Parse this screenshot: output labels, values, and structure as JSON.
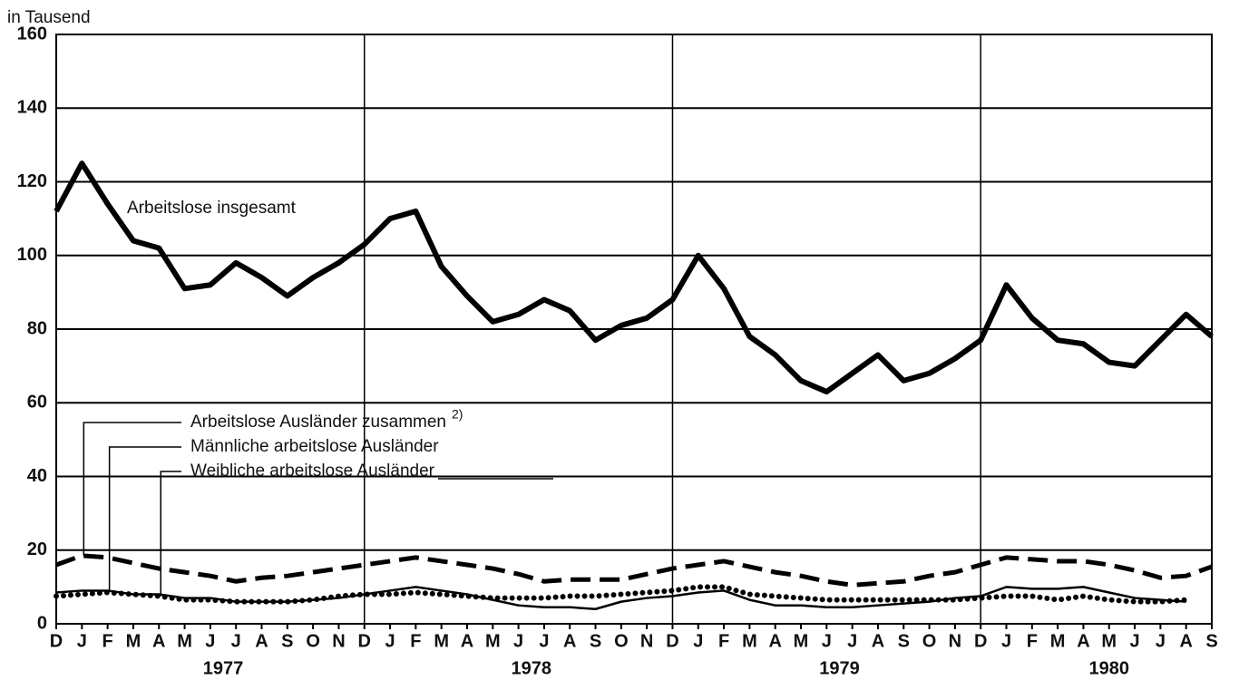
{
  "chart_data": {
    "type": "line",
    "y_label": "in Tausend",
    "categories": [
      "D",
      "J",
      "F",
      "M",
      "A",
      "M",
      "J",
      "J",
      "A",
      "S",
      "O",
      "N",
      "D",
      "J",
      "F",
      "M",
      "A",
      "M",
      "J",
      "J",
      "A",
      "S",
      "O",
      "N",
      "D",
      "J",
      "F",
      "M",
      "A",
      "M",
      "J",
      "J",
      "A",
      "S",
      "O",
      "N",
      "D",
      "J",
      "F",
      "M",
      "A",
      "M",
      "J",
      "J",
      "A",
      "S"
    ],
    "year_labels": [
      "1977",
      "1978",
      "1979",
      "1980"
    ],
    "footnote": "2)",
    "series": [
      {
        "name": "Arbeitslose insgesamt",
        "color": "#000000",
        "line_style": "bold",
        "values": [
          112,
          125,
          114,
          104,
          102,
          91,
          92,
          98,
          94,
          89,
          94,
          98,
          103,
          110,
          112,
          97,
          89,
          82,
          84,
          88,
          85,
          77,
          81,
          83,
          88,
          100,
          91,
          78,
          73,
          66,
          63,
          68,
          73,
          66,
          68,
          72,
          77,
          92,
          83,
          77,
          76,
          71,
          70,
          77,
          84,
          78
        ]
      },
      {
        "name": "Arbeitslose Ausländer zusammen",
        "color": "#000000",
        "line_style": "dashed",
        "values": [
          16,
          18.5,
          18,
          16.5,
          15,
          14,
          13,
          11.5,
          12.5,
          13,
          14,
          15,
          16,
          17,
          18,
          17,
          16,
          15,
          13.5,
          11.5,
          12,
          12,
          12,
          13.5,
          15,
          16,
          17,
          15.5,
          14,
          13,
          11.5,
          10.5,
          11,
          11.5,
          13,
          14,
          16,
          18,
          17.5,
          17,
          17,
          16,
          14.5,
          12.5,
          13,
          15.5
        ]
      },
      {
        "name": "Männliche arbeitslose Ausländer",
        "color": "#000000",
        "line_style": "solid",
        "values": [
          8.5,
          9,
          9,
          8,
          8,
          7,
          7,
          6,
          6,
          6,
          6.5,
          7,
          8,
          9,
          10,
          9,
          8,
          6.5,
          5,
          4.5,
          4.5,
          4,
          6,
          7,
          7.5,
          8.5,
          9,
          6.5,
          5,
          5,
          4.5,
          4.5,
          5,
          5.5,
          6,
          7,
          7.5,
          10,
          9.5,
          9.5,
          10,
          8.5,
          7,
          6.5,
          6,
          null
        ]
      },
      {
        "name": "Weibliche arbeitslose Ausländer",
        "color": "#000000",
        "line_style": "dotted",
        "values": [
          7.5,
          8,
          8.5,
          8,
          7.5,
          6.5,
          6.5,
          6,
          6,
          6,
          6.5,
          7.5,
          8,
          8,
          8.5,
          8,
          7.5,
          7,
          7,
          7,
          7.5,
          7.5,
          8,
          8.5,
          9,
          10,
          10,
          8,
          7.5,
          7,
          6.5,
          6.5,
          6.5,
          6.5,
          6.5,
          6.5,
          7,
          7.5,
          7.5,
          6.5,
          7.5,
          6.5,
          6,
          6,
          6.5,
          null
        ]
      }
    ],
    "ylim": [
      0,
      160
    ],
    "yticks": [
      0,
      20,
      40,
      60,
      80,
      100,
      120,
      140,
      160
    ],
    "grid": true
  }
}
